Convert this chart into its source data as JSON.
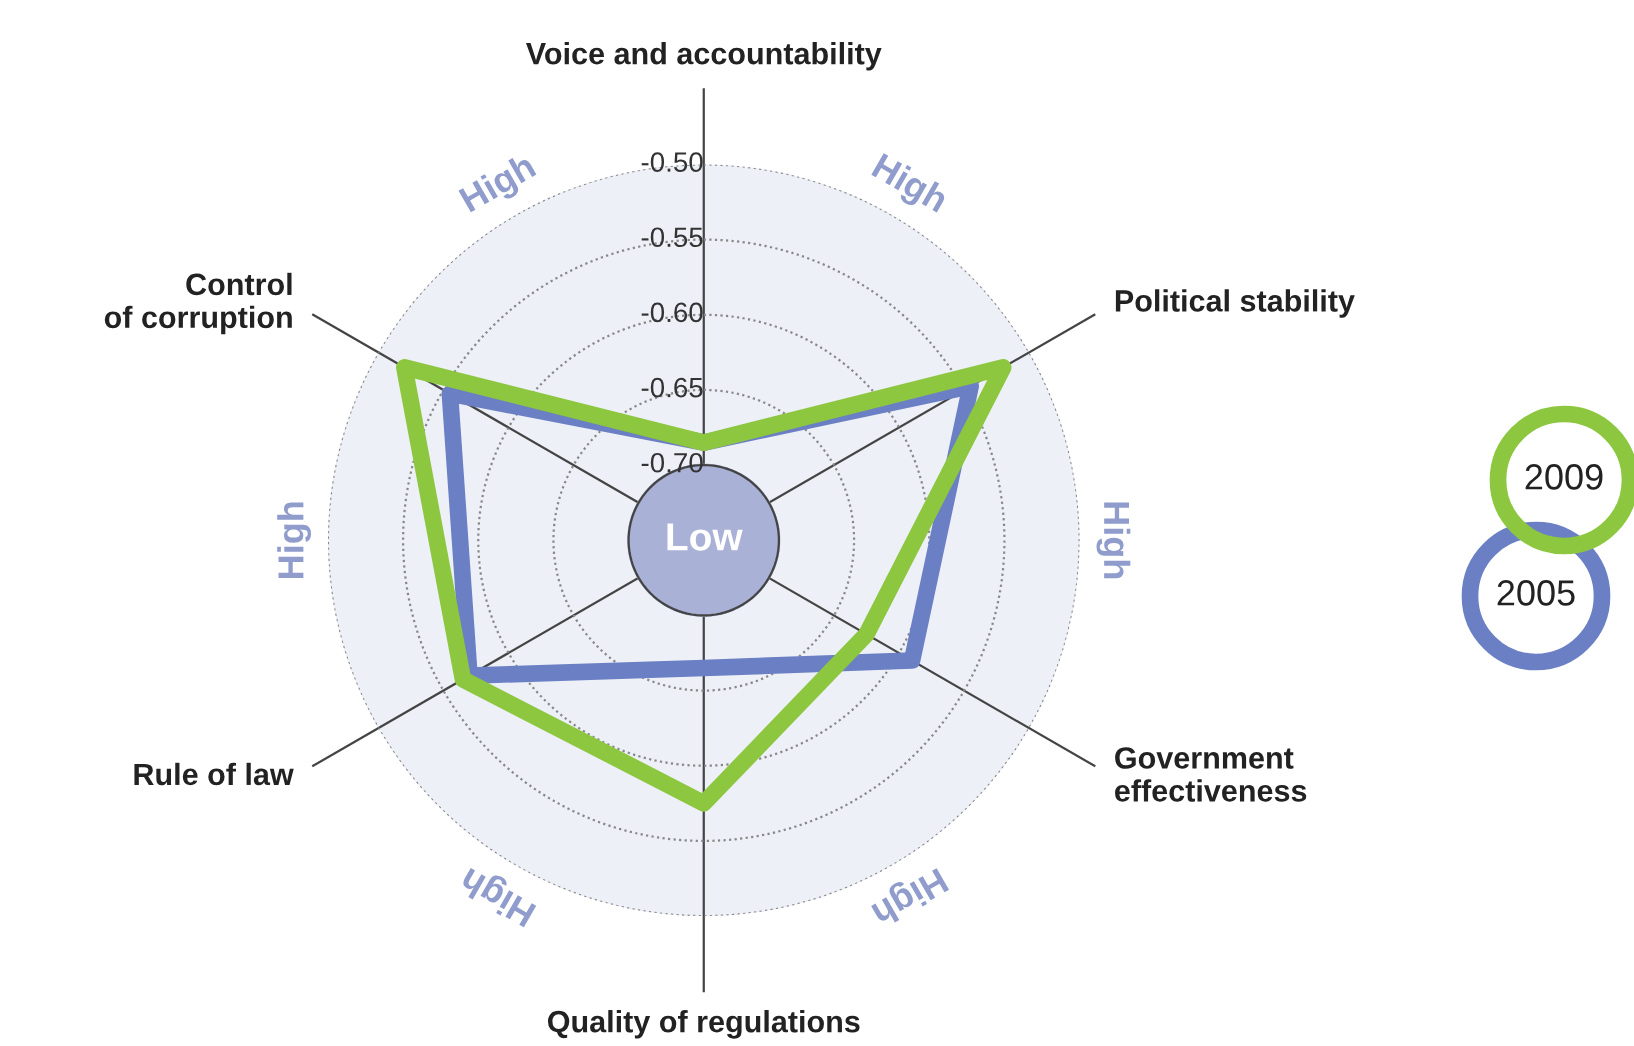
{
  "chart_data": {
    "type": "radar",
    "categories": [
      "Voice and accountability",
      "Political stability",
      "Government\neffectiveness",
      "Quality of regulations",
      "Rule of law",
      "Control\nof corruption"
    ],
    "series": [
      {
        "name": "2005",
        "color": "#6b7fc4",
        "values": [
          -0.685,
          -0.545,
          -0.59,
          -0.665,
          -0.57,
          -0.555
        ]
      },
      {
        "name": "2009",
        "color": "#8dc63f",
        "values": [
          -0.685,
          -0.52,
          -0.625,
          -0.575,
          -0.565,
          -0.52
        ]
      }
    ],
    "ylim": [
      -0.75,
      -0.5
    ],
    "yticks": [
      {
        "value": -0.7,
        "label": "-0.70"
      },
      {
        "value": -0.65,
        "label": "-0.65"
      },
      {
        "value": -0.6,
        "label": "-0.60"
      },
      {
        "value": -0.55,
        "label": "-0.55"
      },
      {
        "value": -0.5,
        "label": "-0.50"
      }
    ],
    "grid": true,
    "legend": "right",
    "line_style": "solid",
    "marker": "none",
    "annotations": [
      "Low",
      "High",
      "High",
      "High",
      "High",
      "High",
      "High"
    ]
  }
}
